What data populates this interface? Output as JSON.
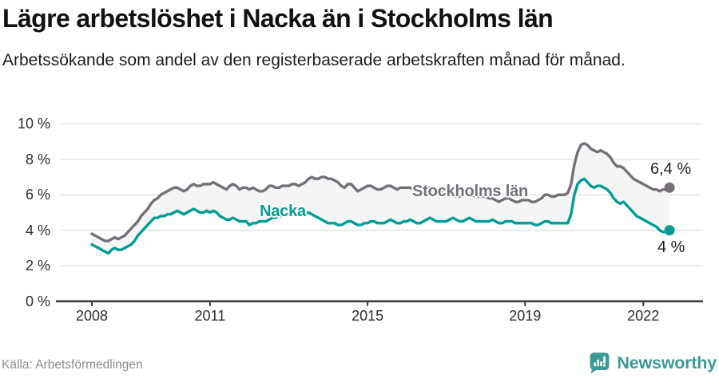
{
  "header": {
    "title": "Lägre arbetslöshet i Nacka än i Stockholms län",
    "subtitle": "Arbetssökande som andel av den registerbaserade arbetskraften månad för månad."
  },
  "footer": {
    "source": "Källa: Arbetsförmedlingen",
    "brand": "Newsworthy",
    "brand_color": "#3C9A94"
  },
  "colors": {
    "grid": "#e3e3e3",
    "axis": "#3c3c3c",
    "band_fill": "#f5f5f5",
    "background": "#ffffff"
  },
  "chart_data": {
    "type": "line",
    "title": "Lägre arbetslöshet i Nacka än i Stockholms län",
    "subtitle": "Arbetssökande som andel av den registerbaserade arbetskraften månad för månad.",
    "unit": "%",
    "x_start_year": 2008,
    "x_step_months": 1,
    "ylim": [
      0,
      10
    ],
    "grid": "horizontal",
    "legend_position": "inline-labels",
    "yticks": [
      {
        "label": "10 %",
        "value": 10
      },
      {
        "label": "8 %",
        "value": 8
      },
      {
        "label": "6 %",
        "value": 6
      },
      {
        "label": "4 %",
        "value": 4
      },
      {
        "label": "2 %",
        "value": 2
      },
      {
        "label": "0 %",
        "value": 0
      }
    ],
    "xticks": [
      {
        "label": "2008",
        "value": 2008
      },
      {
        "label": "2011",
        "value": 2011
      },
      {
        "label": "2015",
        "value": 2015
      },
      {
        "label": "2019",
        "value": 2019
      },
      {
        "label": "2022",
        "value": 2022
      }
    ],
    "series": [
      {
        "name": "Stockholms län",
        "color": "#756F78",
        "end_label": "6,4 %",
        "end_value": 6.4,
        "values": [
          3.8,
          3.7,
          3.6,
          3.5,
          3.4,
          3.4,
          3.5,
          3.6,
          3.5,
          3.6,
          3.7,
          3.9,
          4.1,
          4.3,
          4.5,
          4.8,
          5.0,
          5.2,
          5.5,
          5.7,
          5.8,
          6.0,
          6.1,
          6.2,
          6.3,
          6.4,
          6.4,
          6.3,
          6.2,
          6.3,
          6.5,
          6.6,
          6.5,
          6.5,
          6.6,
          6.6,
          6.6,
          6.7,
          6.6,
          6.5,
          6.4,
          6.3,
          6.5,
          6.6,
          6.5,
          6.3,
          6.4,
          6.4,
          6.3,
          6.4,
          6.3,
          6.2,
          6.2,
          6.3,
          6.5,
          6.5,
          6.4,
          6.4,
          6.5,
          6.5,
          6.5,
          6.6,
          6.6,
          6.5,
          6.6,
          6.7,
          6.9,
          7.0,
          6.9,
          6.9,
          7.0,
          7.0,
          6.9,
          6.9,
          6.8,
          6.7,
          6.5,
          6.4,
          6.6,
          6.6,
          6.4,
          6.2,
          6.3,
          6.4,
          6.5,
          6.5,
          6.4,
          6.3,
          6.3,
          6.4,
          6.5,
          6.5,
          6.4,
          6.3,
          6.4,
          6.4,
          6.4,
          6.4,
          6.3,
          6.2,
          6.2,
          6.3,
          6.4,
          6.4,
          6.3,
          6.2,
          6.2,
          6.2,
          6.1,
          6.1,
          6.0,
          5.9,
          5.9,
          6.0,
          6.1,
          6.1,
          6.0,
          5.9,
          5.9,
          5.9,
          5.9,
          5.8,
          5.8,
          5.7,
          5.6,
          5.7,
          5.8,
          5.8,
          5.7,
          5.6,
          5.6,
          5.7,
          5.7,
          5.7,
          5.6,
          5.6,
          5.7,
          5.8,
          6.0,
          6.0,
          5.9,
          5.9,
          6.0,
          6.0,
          6.0,
          6.1,
          6.6,
          7.7,
          8.4,
          8.8,
          8.9,
          8.8,
          8.6,
          8.5,
          8.4,
          8.5,
          8.4,
          8.3,
          8.1,
          7.8,
          7.6,
          7.6,
          7.5,
          7.3,
          7.1,
          6.9,
          6.8,
          6.7,
          6.6,
          6.5,
          6.4,
          6.3,
          6.3,
          6.2,
          6.3,
          6.3,
          6.4
        ]
      },
      {
        "name": "Nacka",
        "color": "#009E94",
        "end_label": "4 %",
        "end_value": 4.0,
        "values": [
          3.2,
          3.1,
          3.0,
          2.9,
          2.8,
          2.7,
          2.9,
          3.0,
          2.9,
          2.9,
          3.0,
          3.1,
          3.2,
          3.4,
          3.7,
          3.9,
          4.1,
          4.3,
          4.5,
          4.7,
          4.7,
          4.8,
          4.8,
          4.9,
          4.9,
          5.0,
          5.1,
          5.0,
          4.9,
          5.0,
          5.1,
          5.2,
          5.1,
          5.0,
          5.0,
          5.1,
          5.0,
          5.1,
          5.0,
          4.8,
          4.7,
          4.6,
          4.6,
          4.7,
          4.6,
          4.5,
          4.5,
          4.5,
          4.3,
          4.4,
          4.4,
          4.5,
          4.5,
          4.5,
          4.6,
          4.7,
          4.7,
          4.8,
          4.8,
          4.9,
          4.9,
          5.0,
          5.0,
          4.9,
          4.9,
          4.9,
          5.0,
          4.9,
          4.8,
          4.7,
          4.6,
          4.5,
          4.4,
          4.4,
          4.4,
          4.3,
          4.3,
          4.4,
          4.5,
          4.5,
          4.4,
          4.3,
          4.3,
          4.4,
          4.4,
          4.5,
          4.5,
          4.4,
          4.4,
          4.4,
          4.5,
          4.6,
          4.5,
          4.4,
          4.4,
          4.5,
          4.5,
          4.6,
          4.5,
          4.4,
          4.4,
          4.5,
          4.6,
          4.7,
          4.6,
          4.5,
          4.5,
          4.5,
          4.5,
          4.6,
          4.7,
          4.6,
          4.5,
          4.5,
          4.6,
          4.7,
          4.6,
          4.5,
          4.5,
          4.5,
          4.5,
          4.5,
          4.6,
          4.5,
          4.4,
          4.4,
          4.5,
          4.5,
          4.5,
          4.4,
          4.4,
          4.4,
          4.4,
          4.4,
          4.4,
          4.3,
          4.3,
          4.4,
          4.5,
          4.5,
          4.4,
          4.4,
          4.4,
          4.4,
          4.4,
          4.4,
          4.9,
          6.0,
          6.6,
          6.8,
          6.9,
          6.7,
          6.5,
          6.4,
          6.5,
          6.5,
          6.4,
          6.3,
          6.1,
          5.8,
          5.6,
          5.5,
          5.6,
          5.4,
          5.2,
          5.0,
          4.8,
          4.7,
          4.6,
          4.5,
          4.4,
          4.3,
          4.2,
          4.0,
          3.9,
          3.9,
          4.0
        ]
      }
    ]
  }
}
